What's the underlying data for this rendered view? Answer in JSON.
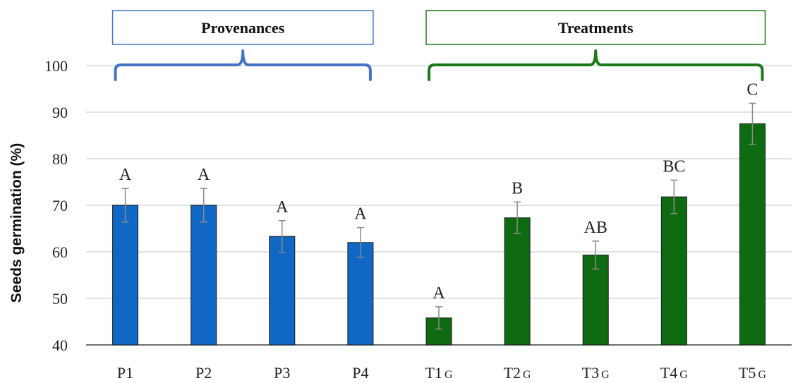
{
  "chart_data": {
    "type": "bar",
    "ylabel": "Seeds germination (%)",
    "ylim": [
      40,
      100
    ],
    "yticks": [
      40,
      50,
      60,
      70,
      80,
      90,
      100
    ],
    "grid": true,
    "bars": [
      {
        "label": "P1",
        "sub": "",
        "value": 70.0,
        "error": 3.6,
        "sig": "A",
        "group": "provenances"
      },
      {
        "label": "P2",
        "sub": "",
        "value": 70.0,
        "error": 3.6,
        "sig": "A",
        "group": "provenances"
      },
      {
        "label": "P3",
        "sub": "",
        "value": 63.3,
        "error": 3.4,
        "sig": "A",
        "group": "provenances"
      },
      {
        "label": "P4",
        "sub": "",
        "value": 62.0,
        "error": 3.2,
        "sig": "A",
        "group": "provenances"
      },
      {
        "label": "T1",
        "sub": "G",
        "value": 45.8,
        "error": 2.4,
        "sig": "A",
        "group": "treatments"
      },
      {
        "label": "T2",
        "sub": "G",
        "value": 67.3,
        "error": 3.4,
        "sig": "B",
        "group": "treatments"
      },
      {
        "label": "T3",
        "sub": "G",
        "value": 59.3,
        "error": 3.0,
        "sig": "AB",
        "group": "treatments"
      },
      {
        "label": "T4",
        "sub": "G",
        "value": 71.8,
        "error": 3.6,
        "sig": "BC",
        "group": "treatments"
      },
      {
        "label": "T5",
        "sub": "G",
        "value": 87.5,
        "error": 4.4,
        "sig": "C",
        "group": "treatments"
      }
    ],
    "groups": [
      {
        "id": "provenances",
        "title": "Provenances",
        "color": "#4472c4"
      },
      {
        "id": "treatments",
        "title": "Treatments",
        "color": "#1a7a1a"
      }
    ],
    "colors": {
      "provenances_bar": "#1068c4",
      "treatments_bar": "#0f6b12",
      "error_bar": "#8a8a8a",
      "grid": "#d9d9d9",
      "axis": "#404040"
    }
  }
}
